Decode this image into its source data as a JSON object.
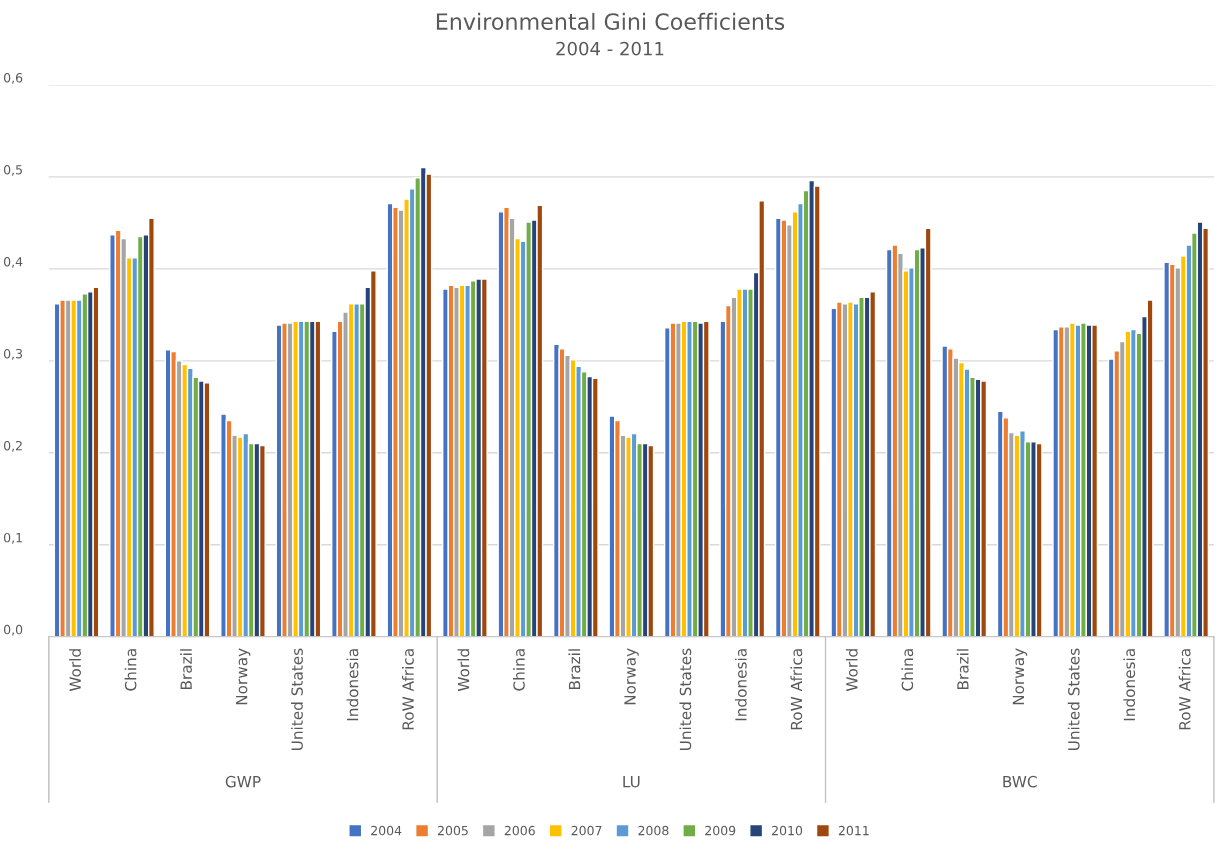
{
  "chart_data": {
    "type": "bar",
    "title": "Environmental Gini Coefficients",
    "subtitle": "2004 - 2011",
    "categories": [
      "World",
      "China",
      "Brazil",
      "Norway",
      "United States",
      "Indonesia",
      "RoW Africa",
      "World",
      "China",
      "Brazil",
      "Norway",
      "United States",
      "Indonesia",
      "RoW Africa",
      "World",
      "China",
      "Brazil",
      "Norway",
      "United States",
      "Indonesia",
      "RoW Africa"
    ],
    "annotations": [
      "GWP",
      "LU",
      "BWC"
    ],
    "series": [
      {
        "name": "2004",
        "color": "#4472c4",
        "values": [
          0.362,
          0.437,
          0.312,
          0.242,
          0.339,
          0.332,
          0.471,
          0.378,
          0.462,
          0.318,
          0.24,
          0.336,
          0.343,
          0.455,
          0.357,
          0.421,
          0.316,
          0.245,
          0.334,
          0.302,
          0.407
        ]
      },
      {
        "name": "2005",
        "color": "#ed7d31",
        "values": [
          0.366,
          0.442,
          0.31,
          0.235,
          0.341,
          0.343,
          0.467,
          0.382,
          0.467,
          0.313,
          0.235,
          0.341,
          0.36,
          0.453,
          0.364,
          0.426,
          0.313,
          0.238,
          0.337,
          0.311,
          0.405
        ]
      },
      {
        "name": "2006",
        "color": "#a5a5a5",
        "values": [
          0.366,
          0.433,
          0.3,
          0.219,
          0.341,
          0.353,
          0.464,
          0.38,
          0.455,
          0.306,
          0.219,
          0.341,
          0.369,
          0.448,
          0.362,
          0.417,
          0.303,
          0.222,
          0.337,
          0.321,
          0.401
        ]
      },
      {
        "name": "2007",
        "color": "#ffc000",
        "values": [
          0.366,
          0.412,
          0.296,
          0.217,
          0.343,
          0.362,
          0.476,
          0.382,
          0.433,
          0.301,
          0.217,
          0.343,
          0.378,
          0.462,
          0.364,
          0.398,
          0.298,
          0.219,
          0.341,
          0.332,
          0.414
        ]
      },
      {
        "name": "2008",
        "color": "#5b9bd5",
        "values": [
          0.366,
          0.412,
          0.292,
          0.221,
          0.343,
          0.362,
          0.487,
          0.382,
          0.43,
          0.294,
          0.221,
          0.343,
          0.378,
          0.471,
          0.362,
          0.401,
          0.291,
          0.224,
          0.339,
          0.334,
          0.426
        ]
      },
      {
        "name": "2009",
        "color": "#70ad47",
        "values": [
          0.373,
          0.435,
          0.282,
          0.21,
          0.343,
          0.362,
          0.499,
          0.387,
          0.451,
          0.288,
          0.21,
          0.343,
          0.378,
          0.485,
          0.369,
          0.421,
          0.282,
          0.212,
          0.341,
          0.33,
          0.439
        ]
      },
      {
        "name": "2010",
        "color": "#264478",
        "values": [
          0.375,
          0.437,
          0.278,
          0.21,
          0.343,
          0.38,
          0.51,
          0.389,
          0.453,
          0.283,
          0.21,
          0.341,
          0.396,
          0.496,
          0.369,
          0.423,
          0.28,
          0.212,
          0.339,
          0.348,
          0.451
        ]
      },
      {
        "name": "2011",
        "color": "#9e480e",
        "values": [
          0.38,
          0.455,
          0.276,
          0.208,
          0.343,
          0.398,
          0.503,
          0.389,
          0.469,
          0.281,
          0.208,
          0.343,
          0.474,
          0.49,
          0.375,
          0.444,
          0.278,
          0.21,
          0.339,
          0.366,
          0.444
        ]
      }
    ],
    "ylim": [
      0,
      0.6
    ],
    "yticks": [
      {
        "value": 0,
        "label": "0,0"
      },
      {
        "value": 0.1,
        "label": "0,1"
      },
      {
        "value": 0.2,
        "label": "0,2"
      },
      {
        "value": 0.3,
        "label": "0,3"
      },
      {
        "value": 0.4,
        "label": "0,4"
      },
      {
        "value": 0.5,
        "label": "0,5"
      },
      {
        "value": 0.6,
        "label": "0,6"
      }
    ],
    "grid": "y",
    "legend": "bottom"
  }
}
